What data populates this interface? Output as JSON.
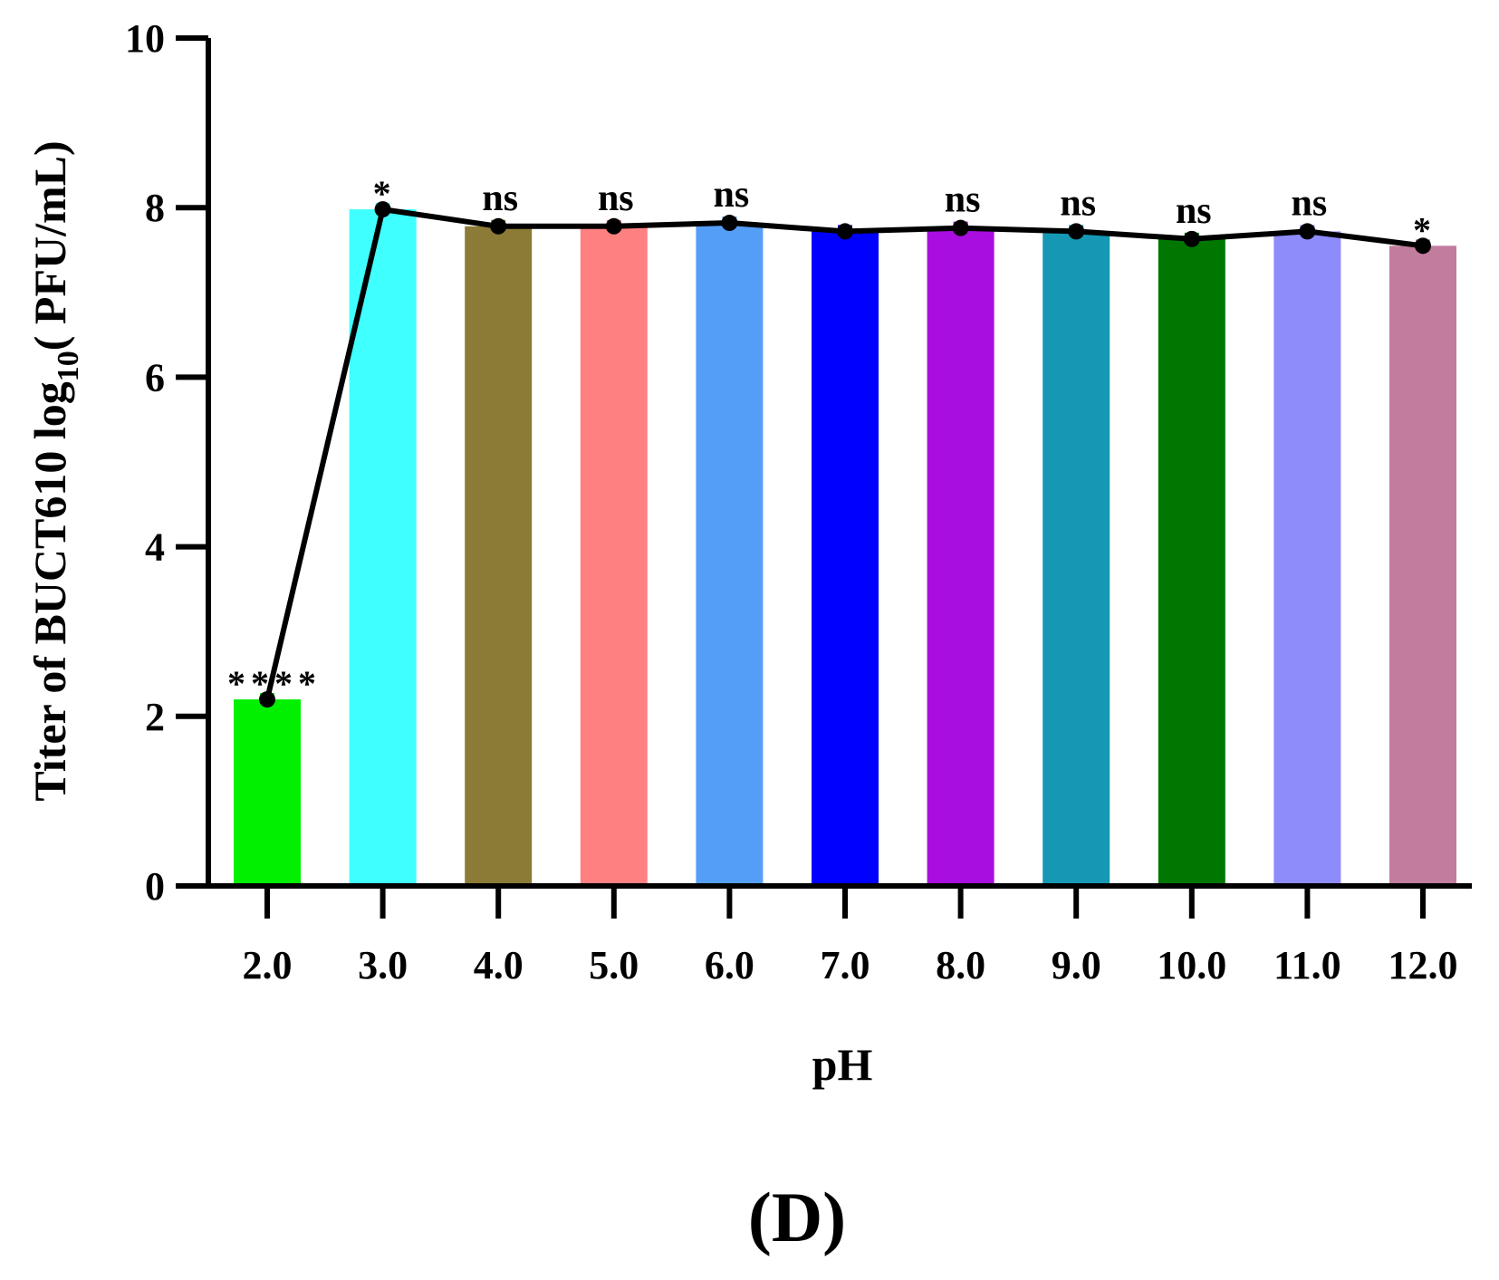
{
  "chart_data": {
    "type": "bar",
    "title": "",
    "xlabel": "pH",
    "ylabel": "Titer of BUCT610 log",
    "ylabel_sub": "10",
    "ylabel_tail": "( PFU/mL)",
    "ylim": [
      0,
      10
    ],
    "yticks": [
      "0",
      "2",
      "4",
      "6",
      "8",
      "10"
    ],
    "categories": [
      "2.0",
      "3.0",
      "4.0",
      "5.0",
      "6.0",
      "7.0",
      "8.0",
      "9.0",
      "10.0",
      "11.0",
      "12.0"
    ],
    "values": [
      2.2,
      7.98,
      7.78,
      7.78,
      7.82,
      7.72,
      7.76,
      7.72,
      7.63,
      7.72,
      7.55
    ],
    "significance": [
      "****",
      "*",
      "ns",
      "ns",
      "ns",
      "",
      "ns",
      "ns",
      "ns",
      "ns",
      "*"
    ],
    "bar_colors": [
      "#00f000",
      "#40ffff",
      "#8b7b36",
      "#ff8080",
      "#559ef7",
      "#0000ff",
      "#a80ee0",
      "#1498b4",
      "#007700",
      "#8e8cfa",
      "#c27c9e"
    ],
    "line_overlay": true,
    "grid": false,
    "legend": "none"
  },
  "panel_label": "(D)"
}
